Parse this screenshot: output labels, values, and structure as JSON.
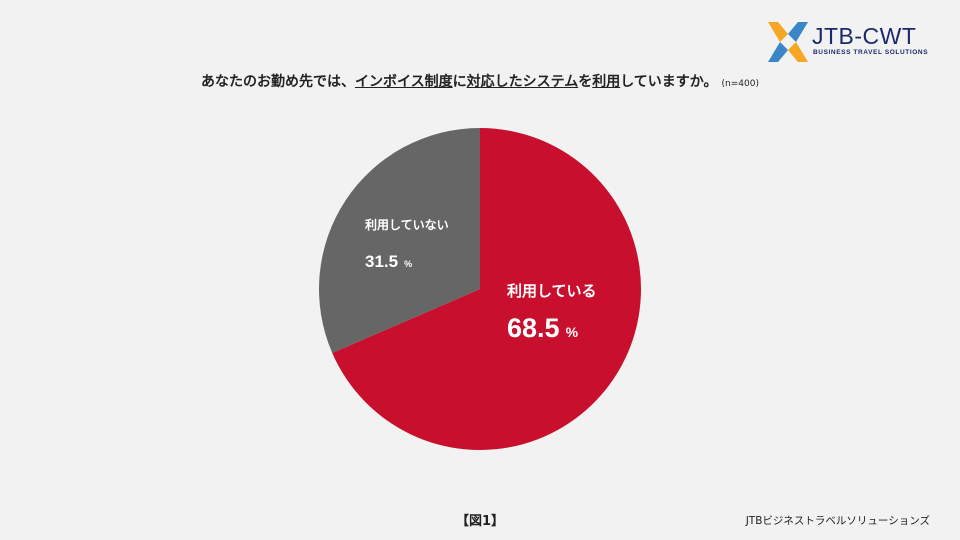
{
  "logo": {
    "name": "JTB-CWT",
    "tagline": "BUSINESS TRAVEL SOLUTIONS",
    "colors": [
      "#f5a623",
      "#3a86c8"
    ]
  },
  "title": {
    "prefix": "あなたのお勤め先では、",
    "underlined_1": "インボイス制度",
    "middle_1": "に",
    "underlined_2": "対応したシステム",
    "middle_2": "を",
    "underlined_3": "利用",
    "suffix": "していますか。",
    "sample": "(n=400)"
  },
  "chart_data": {
    "type": "pie",
    "categories": [
      "利用している",
      "利用していない"
    ],
    "values": [
      68.5,
      31.5
    ],
    "value_labels": [
      "68.5",
      "31.5"
    ],
    "unit": "%",
    "colors": [
      "#c8102e",
      "#666666"
    ],
    "start": "12 o'clock, clockwise"
  },
  "figure_label": "【図1】",
  "footer": "JTBビジネストラベルソリューションズ"
}
